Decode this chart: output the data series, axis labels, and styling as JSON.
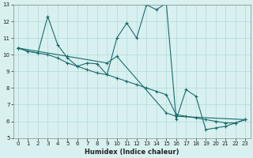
{
  "xlabel": "Humidex (Indice chaleur)",
  "bg_color": "#d8f0f0",
  "grid_color": "#b8dede",
  "line_color": "#1a6b6b",
  "xlim": [
    -0.5,
    23.5
  ],
  "ylim": [
    5,
    13
  ],
  "xticks": [
    0,
    1,
    2,
    3,
    4,
    5,
    6,
    7,
    8,
    9,
    10,
    11,
    12,
    13,
    14,
    15,
    16,
    17,
    18,
    19,
    20,
    21,
    22,
    23
  ],
  "yticks": [
    5,
    6,
    7,
    8,
    9,
    10,
    11,
    12,
    13
  ],
  "series1": [
    [
      0,
      10.4
    ],
    [
      1,
      10.2
    ],
    [
      2,
      10.1
    ],
    [
      3,
      12.3
    ],
    [
      4,
      10.6
    ],
    [
      5,
      9.8
    ],
    [
      6,
      9.3
    ],
    [
      7,
      9.5
    ],
    [
      8,
      9.45
    ],
    [
      9,
      8.8
    ],
    [
      10,
      11.0
    ],
    [
      11,
      11.9
    ],
    [
      12,
      11.0
    ],
    [
      13,
      13.0
    ],
    [
      14,
      12.7
    ],
    [
      15,
      13.1
    ],
    [
      16,
      6.1
    ],
    [
      17,
      7.9
    ],
    [
      18,
      7.5
    ],
    [
      19,
      5.5
    ],
    [
      20,
      5.6
    ],
    [
      21,
      5.7
    ],
    [
      22,
      5.9
    ],
    [
      23,
      6.1
    ]
  ],
  "series2": [
    [
      0,
      10.4
    ],
    [
      1,
      10.2
    ],
    [
      2,
      10.1
    ],
    [
      3,
      10.0
    ],
    [
      4,
      9.8
    ],
    [
      5,
      9.5
    ],
    [
      6,
      9.3
    ],
    [
      7,
      9.1
    ],
    [
      8,
      8.9
    ],
    [
      9,
      8.8
    ],
    [
      10,
      8.6
    ],
    [
      11,
      8.4
    ],
    [
      12,
      8.2
    ],
    [
      13,
      8.0
    ],
    [
      14,
      7.8
    ],
    [
      15,
      7.6
    ],
    [
      16,
      6.4
    ],
    [
      17,
      6.3
    ],
    [
      18,
      6.2
    ],
    [
      19,
      6.1
    ],
    [
      20,
      6.0
    ],
    [
      21,
      5.9
    ],
    [
      22,
      5.9
    ],
    [
      23,
      6.1
    ]
  ],
  "series3": [
    [
      0,
      10.4
    ],
    [
      5,
      9.9
    ],
    [
      9,
      9.5
    ],
    [
      10,
      9.9
    ],
    [
      15,
      6.5
    ],
    [
      16,
      6.3
    ],
    [
      23,
      6.1
    ]
  ]
}
